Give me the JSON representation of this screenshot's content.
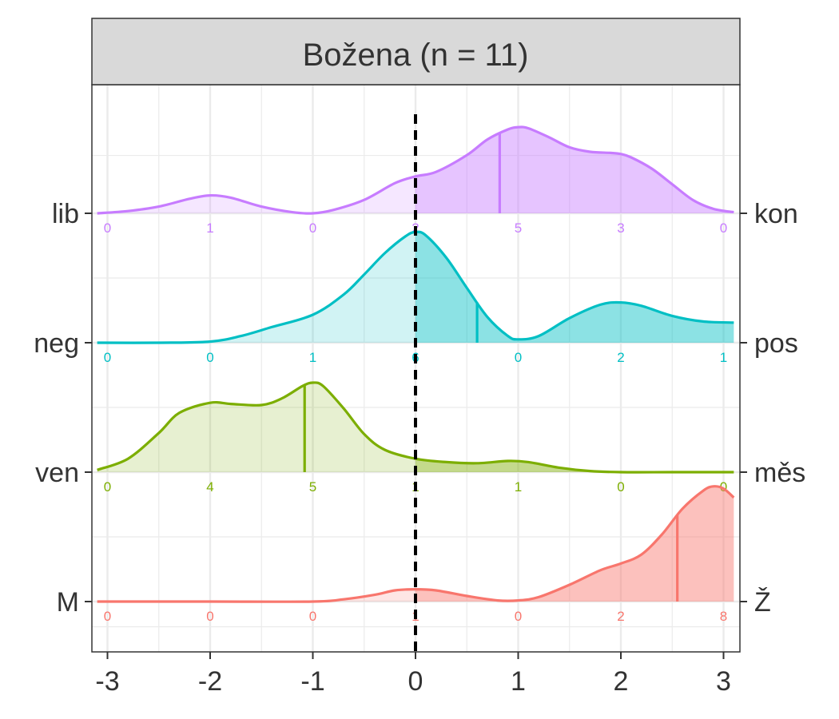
{
  "chart_data": {
    "type": "area",
    "title": "Božena (n = 11)",
    "xlabel": "",
    "ylabel": "",
    "xlim": [
      -3.1,
      3.1
    ],
    "x_ticks": [
      "-3",
      "-2",
      "-1",
      "0",
      "1",
      "2",
      "3"
    ],
    "reference_line_x": 0,
    "grid": true,
    "series": [
      {
        "left_label": "lib",
        "right_label": "kon",
        "color": "#C77CFF",
        "mean": 0.82,
        "count_positions": [
          -3,
          -2,
          -1,
          0,
          1,
          2,
          3
        ],
        "counts": [
          "0",
          "1",
          "0",
          "2",
          "5",
          "3",
          "0"
        ],
        "density_x": [
          -3.1,
          -2.8,
          -2.5,
          -2.2,
          -2.0,
          -1.8,
          -1.5,
          -1.2,
          -1.0,
          -0.8,
          -0.5,
          -0.2,
          0.0,
          0.2,
          0.5,
          0.7,
          0.9,
          1.0,
          1.1,
          1.3,
          1.5,
          1.7,
          1.9,
          2.0,
          2.1,
          2.3,
          2.5,
          2.7,
          2.9,
          3.1
        ],
        "density_y": [
          0.0,
          0.02,
          0.06,
          0.13,
          0.16,
          0.14,
          0.06,
          0.01,
          0.0,
          0.03,
          0.12,
          0.27,
          0.33,
          0.37,
          0.52,
          0.66,
          0.75,
          0.77,
          0.76,
          0.68,
          0.59,
          0.55,
          0.54,
          0.53,
          0.5,
          0.4,
          0.26,
          0.12,
          0.04,
          0.01
        ]
      },
      {
        "left_label": "neg",
        "right_label": "pos",
        "color": "#00BFC4",
        "mean": 0.6,
        "count_positions": [
          -3,
          -2,
          -1,
          0,
          1,
          2,
          3
        ],
        "counts": [
          "0",
          "0",
          "1",
          "6",
          "0",
          "2",
          "1"
        ],
        "density_x": [
          -3.1,
          -2.5,
          -2.0,
          -1.7,
          -1.4,
          -1.0,
          -0.7,
          -0.5,
          -0.3,
          -0.1,
          0.0,
          0.1,
          0.3,
          0.5,
          0.7,
          0.9,
          1.0,
          1.2,
          1.5,
          1.8,
          2.0,
          2.2,
          2.5,
          2.8,
          3.1
        ],
        "density_y": [
          0.0,
          0.0,
          0.01,
          0.06,
          0.14,
          0.25,
          0.43,
          0.61,
          0.8,
          0.95,
          0.99,
          0.96,
          0.76,
          0.49,
          0.23,
          0.06,
          0.03,
          0.06,
          0.22,
          0.34,
          0.36,
          0.33,
          0.24,
          0.19,
          0.18
        ]
      },
      {
        "left_label": "ven",
        "right_label": "měs",
        "color": "#7CAE00",
        "mean": -1.08,
        "count_positions": [
          -3,
          -2,
          -1,
          0,
          1,
          2,
          3
        ],
        "counts": [
          "0",
          "4",
          "5",
          "1",
          "1",
          "0",
          "0"
        ],
        "density_x": [
          -3.1,
          -2.8,
          -2.5,
          -2.3,
          -2.0,
          -1.8,
          -1.5,
          -1.3,
          -1.1,
          -1.0,
          -0.9,
          -0.7,
          -0.5,
          -0.3,
          0.0,
          0.3,
          0.6,
          0.9,
          1.1,
          1.4,
          1.7,
          2.0,
          2.5,
          3.1
        ],
        "density_y": [
          0.02,
          0.12,
          0.35,
          0.53,
          0.62,
          0.61,
          0.6,
          0.66,
          0.77,
          0.8,
          0.77,
          0.57,
          0.34,
          0.2,
          0.12,
          0.09,
          0.08,
          0.1,
          0.09,
          0.04,
          0.01,
          0.0,
          0.0,
          0.0
        ]
      },
      {
        "left_label": "M",
        "right_label": "Ž",
        "color": "#F8766D",
        "mean": 2.55,
        "count_positions": [
          -3,
          -2,
          -1,
          0,
          1,
          2,
          3
        ],
        "counts": [
          "0",
          "0",
          "0",
          "1",
          "0",
          "2",
          "8"
        ],
        "density_x": [
          -3.1,
          -2.0,
          -1.0,
          -0.7,
          -0.4,
          -0.2,
          0.0,
          0.2,
          0.5,
          0.8,
          1.0,
          1.2,
          1.5,
          1.8,
          2.0,
          2.2,
          2.4,
          2.6,
          2.8,
          2.9,
          3.0,
          3.1
        ],
        "density_y": [
          0.0,
          0.0,
          0.0,
          0.02,
          0.06,
          0.1,
          0.11,
          0.1,
          0.05,
          0.01,
          0.01,
          0.04,
          0.15,
          0.28,
          0.34,
          0.42,
          0.6,
          0.83,
          0.99,
          1.03,
          1.01,
          0.93
        ]
      }
    ]
  }
}
